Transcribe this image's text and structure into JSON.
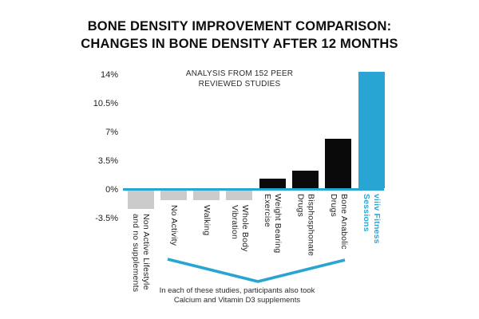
{
  "title": {
    "line1": "BONE DENSITY IMPROVEMENT COMPARISON:",
    "line2": "CHANGES IN BONE DENSITY AFTER 12 MONTHS"
  },
  "annotation": {
    "line1": "ANALYSIS FROM 152 PEER",
    "line2": "REVIEWED STUDIES"
  },
  "footnote": {
    "line1": "In each of these studies, participants also took",
    "line2": "Calcium and Vitamin D3 supplements"
  },
  "colors": {
    "accent": "#29a5d4",
    "bar_gray": "#cbcbcb",
    "bar_black": "#0a0a0b",
    "text": "#111111"
  },
  "chart_data": {
    "type": "bar",
    "title": "BONE DENSITY IMPROVEMENT COMPARISON: CHANGES IN BONE DENSITY AFTER 12 MONTHS",
    "subtitle": "ANALYSIS FROM 152 PEER REVIEWED STUDIES",
    "xlabel": "",
    "ylabel": "",
    "ylim": [
      -3.5,
      14
    ],
    "grid": false,
    "legend": false,
    "yticks": [
      {
        "label": "14%",
        "value": 14
      },
      {
        "label": "10.5%",
        "value": 10.5
      },
      {
        "label": "7%",
        "value": 7
      },
      {
        "label": "3.5%",
        "value": 3.5
      },
      {
        "label": "0%",
        "value": 0
      },
      {
        "label": "-3.5%",
        "value": -3.5
      }
    ],
    "categories": [
      "Non Active Lifestyle\nand no supplements",
      "No Activity",
      "Walking",
      "Whole Body\nVibration",
      "Weight Bearing\nExercise",
      "Bisphosphonate\nDrugs",
      "Bone Anabolic\nDrugs",
      "viiiv Fitness\nSessions"
    ],
    "values": [
      -2.2,
      -1.2,
      -1.2,
      -1.2,
      1.2,
      2.1,
      6.0,
      14.2
    ],
    "bar_colors": [
      "#cbcbcb",
      "#cbcbcb",
      "#cbcbcb",
      "#cbcbcb",
      "#0a0a0b",
      "#0a0a0b",
      "#0a0a0b",
      "#29a5d4"
    ],
    "highlight_index": 7,
    "bracket_note": "In each of these studies, participants also took Calcium and Vitamin D3 supplements",
    "bracket_span": [
      "No Activity",
      "Bone Anabolic Drugs"
    ]
  }
}
